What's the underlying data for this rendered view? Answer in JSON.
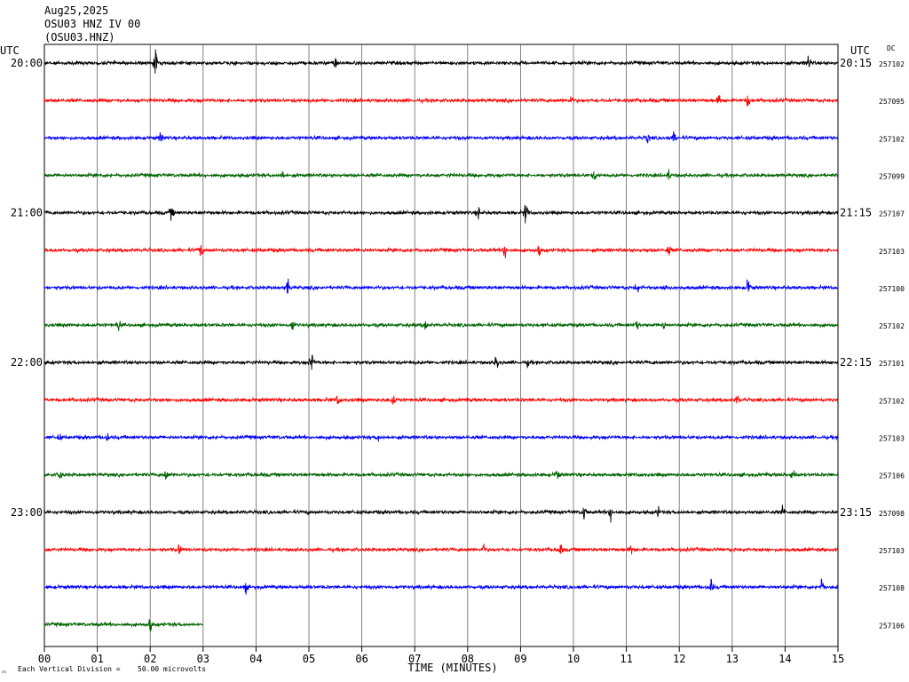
{
  "header": {
    "date": "Aug25,2025",
    "station_line": "OSU03 HNZ IV 00",
    "channel_line": "(OSU03.HNZ)"
  },
  "chart_data": {
    "type": "line",
    "subtype": "helicorder",
    "title": "Aug25,2025 OSU03 HNZ IV 00 (OSU03.HNZ)",
    "xlabel": "TIME (MINUTES)",
    "x_ticks": [
      "00",
      "01",
      "02",
      "03",
      "04",
      "05",
      "06",
      "07",
      "08",
      "09",
      "10",
      "11",
      "12",
      "13",
      "14",
      "15"
    ],
    "xlim": [
      0,
      15
    ],
    "left_axis_label": "UTC",
    "right_axis_label": "UTC",
    "dc_label": "DC",
    "left_time_labels": [
      {
        "row": 0,
        "text": "20:00"
      },
      {
        "row": 4,
        "text": "21:00"
      },
      {
        "row": 8,
        "text": "22:00"
      },
      {
        "row": 12,
        "text": "23:00"
      }
    ],
    "right_time_labels": [
      {
        "row": 0,
        "text": "20:15"
      },
      {
        "row": 4,
        "text": "21:15"
      },
      {
        "row": 8,
        "text": "22:15"
      },
      {
        "row": 12,
        "text": "23:15"
      }
    ],
    "scale_note": "Each Vertical Division =",
    "scale_value": "50.00 microvolts",
    "grid": true,
    "color_cycle": [
      "#000000",
      "#ff0000",
      "#0000ff",
      "#006400"
    ],
    "rows": [
      {
        "dc": "257102",
        "color": "#000000",
        "duration_min": 15,
        "events": [
          {
            "t": 2.1,
            "a": 30
          },
          {
            "t": 5.5,
            "a": 12
          },
          {
            "t": 14.45,
            "a": 22
          }
        ]
      },
      {
        "dc": "257095",
        "color": "#ff0000",
        "duration_min": 15,
        "events": [
          {
            "t": 12.75,
            "a": 12
          },
          {
            "t": 13.3,
            "a": 14
          },
          {
            "t": 9.95,
            "a": 10
          }
        ]
      },
      {
        "dc": "257102",
        "color": "#0000ff",
        "duration_min": 15,
        "events": [
          {
            "t": 2.2,
            "a": 10
          },
          {
            "t": 11.4,
            "a": 10
          },
          {
            "t": 11.9,
            "a": 12
          }
        ]
      },
      {
        "dc": "257099",
        "color": "#006400",
        "duration_min": 15,
        "events": [
          {
            "t": 4.5,
            "a": 10
          },
          {
            "t": 10.4,
            "a": 12
          },
          {
            "t": 11.8,
            "a": 10
          }
        ]
      },
      {
        "dc": "257107",
        "color": "#000000",
        "duration_min": 15,
        "events": [
          {
            "t": 2.4,
            "a": 14
          },
          {
            "t": 8.2,
            "a": 14
          },
          {
            "t": 9.1,
            "a": 28
          }
        ]
      },
      {
        "dc": "257103",
        "color": "#ff0000",
        "duration_min": 15,
        "events": [
          {
            "t": 2.95,
            "a": 16
          },
          {
            "t": 8.7,
            "a": 22
          },
          {
            "t": 9.35,
            "a": 12
          },
          {
            "t": 11.8,
            "a": 14
          }
        ]
      },
      {
        "dc": "257100",
        "color": "#0000ff",
        "duration_min": 15,
        "events": [
          {
            "t": 4.6,
            "a": 18
          },
          {
            "t": 11.2,
            "a": 12
          },
          {
            "t": 11.75,
            "a": 14
          },
          {
            "t": 13.3,
            "a": 20
          }
        ]
      },
      {
        "dc": "257102",
        "color": "#006400",
        "duration_min": 15,
        "events": [
          {
            "t": 1.4,
            "a": 14
          },
          {
            "t": 4.7,
            "a": 16
          },
          {
            "t": 7.2,
            "a": 18
          },
          {
            "t": 11.2,
            "a": 12
          },
          {
            "t": 11.7,
            "a": 12
          }
        ]
      },
      {
        "dc": "257101",
        "color": "#000000",
        "duration_min": 15,
        "events": [
          {
            "t": 5.05,
            "a": 24
          },
          {
            "t": 8.55,
            "a": 22
          },
          {
            "t": 9.15,
            "a": 10
          }
        ]
      },
      {
        "dc": "257102",
        "color": "#ff0000",
        "duration_min": 15,
        "events": [
          {
            "t": 5.55,
            "a": 12
          },
          {
            "t": 6.6,
            "a": 18
          },
          {
            "t": 13.1,
            "a": 10
          }
        ]
      },
      {
        "dc": "257103",
        "color": "#0000ff",
        "duration_min": 15,
        "events": [
          {
            "t": 0.3,
            "a": 8
          },
          {
            "t": 1.2,
            "a": 8
          },
          {
            "t": 6.3,
            "a": 8
          }
        ]
      },
      {
        "dc": "257106",
        "color": "#006400",
        "duration_min": 15,
        "events": [
          {
            "t": 0.3,
            "a": 14
          },
          {
            "t": 2.3,
            "a": 16
          },
          {
            "t": 9.7,
            "a": 16
          },
          {
            "t": 14.15,
            "a": 18
          }
        ]
      },
      {
        "dc": "257098",
        "color": "#000000",
        "duration_min": 15,
        "events": [
          {
            "t": 10.2,
            "a": 16
          },
          {
            "t": 10.7,
            "a": 20
          },
          {
            "t": 11.6,
            "a": 10
          },
          {
            "t": 13.95,
            "a": 12
          }
        ]
      },
      {
        "dc": "257103",
        "color": "#ff0000",
        "duration_min": 15,
        "events": [
          {
            "t": 2.55,
            "a": 12
          },
          {
            "t": 8.3,
            "a": 10
          },
          {
            "t": 9.75,
            "a": 14
          },
          {
            "t": 11.1,
            "a": 10
          }
        ]
      },
      {
        "dc": "257108",
        "color": "#0000ff",
        "duration_min": 15,
        "events": [
          {
            "t": 3.8,
            "a": 12
          },
          {
            "t": 12.6,
            "a": 18
          },
          {
            "t": 14.7,
            "a": 20
          }
        ]
      },
      {
        "dc": "257106",
        "color": "#006400",
        "duration_min": 3,
        "events": [
          {
            "t": 2.0,
            "a": 16
          }
        ]
      }
    ]
  }
}
